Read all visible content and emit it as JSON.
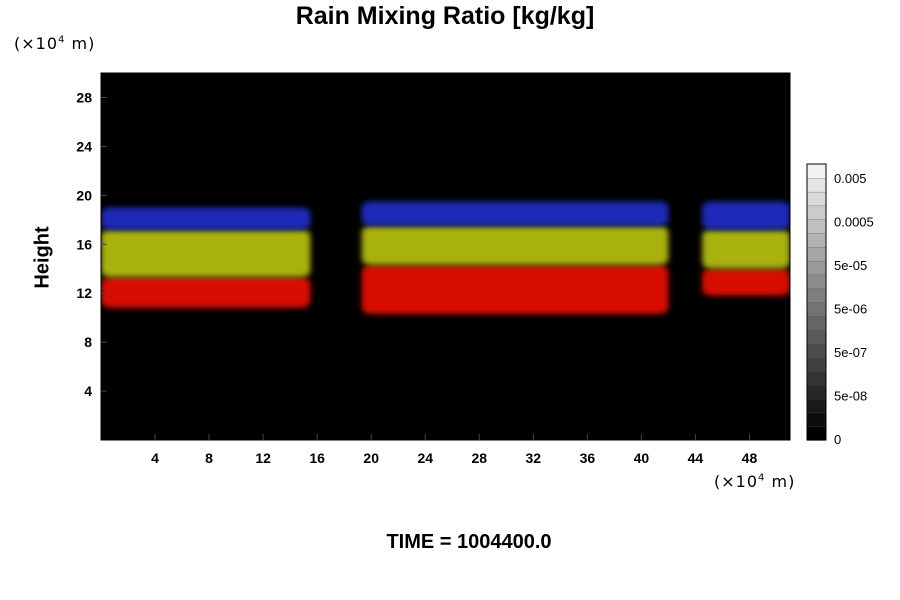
{
  "chart_data": {
    "type": "heatmap",
    "title": "Rain Mixing Ratio [kg/kg]",
    "ylabel": "Height",
    "xlabel": "",
    "y_unit_prefix": "(×10",
    "y_unit_exp": "4",
    "y_unit_suffix": " m)",
    "x_unit_prefix": "(×10",
    "x_unit_exp": "4",
    "x_unit_suffix": " m)",
    "xlim": [
      0,
      51
    ],
    "ylim": [
      0,
      30
    ],
    "x_ticks": [
      "4",
      "8",
      "12",
      "16",
      "20",
      "24",
      "28",
      "32",
      "36",
      "40",
      "44",
      "48"
    ],
    "y_ticks": [
      "4",
      "8",
      "12",
      "16",
      "20",
      "24",
      "28"
    ],
    "background_color": "#000000",
    "colorbar": {
      "labels": [
        "0",
        "5e-08",
        "5e-07",
        "5e-06",
        "5e-05",
        "0.0005",
        "0.005"
      ],
      "levels": 20,
      "color_low": "#000000",
      "color_high": "#f2f2f2"
    },
    "layers": [
      {
        "name": "red",
        "color": "#d80a06"
      },
      {
        "name": "yellow",
        "color": "#a9b10e"
      },
      {
        "name": "blue",
        "color": "#1f2ab7"
      }
    ],
    "features": [
      {
        "x_range": [
          0,
          15.5
        ],
        "layer": "red",
        "y_range": [
          10.8,
          13.3
        ]
      },
      {
        "x_range": [
          0,
          15.5
        ],
        "layer": "yellow",
        "y_range": [
          13.3,
          17.2
        ]
      },
      {
        "x_range": [
          0,
          15.5
        ],
        "layer": "blue",
        "y_range": [
          17.2,
          19.0
        ]
      },
      {
        "x_range": [
          19.3,
          42
        ],
        "layer": "red",
        "y_range": [
          10.3,
          14.3
        ]
      },
      {
        "x_range": [
          19.3,
          42
        ],
        "layer": "yellow",
        "y_range": [
          14.3,
          17.5
        ]
      },
      {
        "x_range": [
          19.3,
          42
        ],
        "layer": "blue",
        "y_range": [
          17.5,
          19.5
        ]
      },
      {
        "x_range": [
          44.5,
          51
        ],
        "layer": "red",
        "y_range": [
          11.8,
          14.0
        ]
      },
      {
        "x_range": [
          44.5,
          51
        ],
        "layer": "yellow",
        "y_range": [
          14.0,
          17.2
        ]
      },
      {
        "x_range": [
          44.5,
          51
        ],
        "layer": "blue",
        "y_range": [
          17.2,
          19.5
        ]
      }
    ]
  },
  "time_label": "TIME = 1004400.0"
}
